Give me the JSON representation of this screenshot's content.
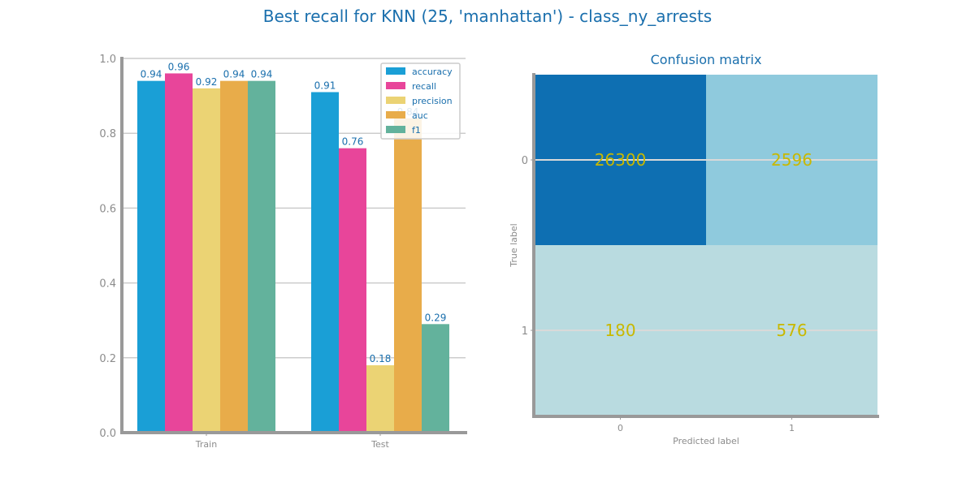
{
  "title": "Best recall for KNN (25, 'manhattan') - class_ny_arrests",
  "colors": {
    "title": "#1a6fad",
    "series": [
      "#1a9fd6",
      "#e8459a",
      "#ebd374",
      "#e8ac4a",
      "#63b29c"
    ],
    "cm_high": "#0e6fb2",
    "cm_mid": "#8fcadd",
    "cm_low": "#b9dbe0",
    "cm_text": "#c8b800",
    "axis": "#999999",
    "grid": "#cccccc"
  },
  "chart_data": [
    {
      "type": "bar",
      "categories": [
        "Train",
        "Test"
      ],
      "series": [
        {
          "name": "accuracy",
          "values": [
            0.94,
            0.91
          ],
          "labels": [
            "0.94",
            "0.91"
          ]
        },
        {
          "name": "recall",
          "values": [
            0.96,
            0.76
          ],
          "labels": [
            "0.96",
            "0.76"
          ]
        },
        {
          "name": "precision",
          "values": [
            0.92,
            0.18
          ],
          "labels": [
            "0.92",
            "0.18"
          ]
        },
        {
          "name": "auc",
          "values": [
            0.94,
            0.84
          ],
          "labels": [
            "0.94",
            "0.84"
          ]
        },
        {
          "name": "f1",
          "values": [
            0.94,
            0.29
          ],
          "labels": [
            "0.94",
            "0.29"
          ]
        }
      ],
      "ylim": [
        0,
        1.0
      ],
      "yticks": [
        "0.0",
        "0.2",
        "0.4",
        "0.6",
        "0.8",
        "1.0"
      ],
      "grid": true,
      "legend": "top-right"
    },
    {
      "type": "heatmap",
      "title": "Confusion matrix",
      "xlabel": "Predicted label",
      "ylabel": "True label",
      "x_ticks": [
        "0",
        "1"
      ],
      "y_ticks": [
        "0",
        "1"
      ],
      "matrix": [
        [
          26300,
          2596
        ],
        [
          180,
          576
        ]
      ],
      "matrix_labels": [
        [
          "26300",
          "2596"
        ],
        [
          "180",
          "576"
        ]
      ]
    }
  ]
}
